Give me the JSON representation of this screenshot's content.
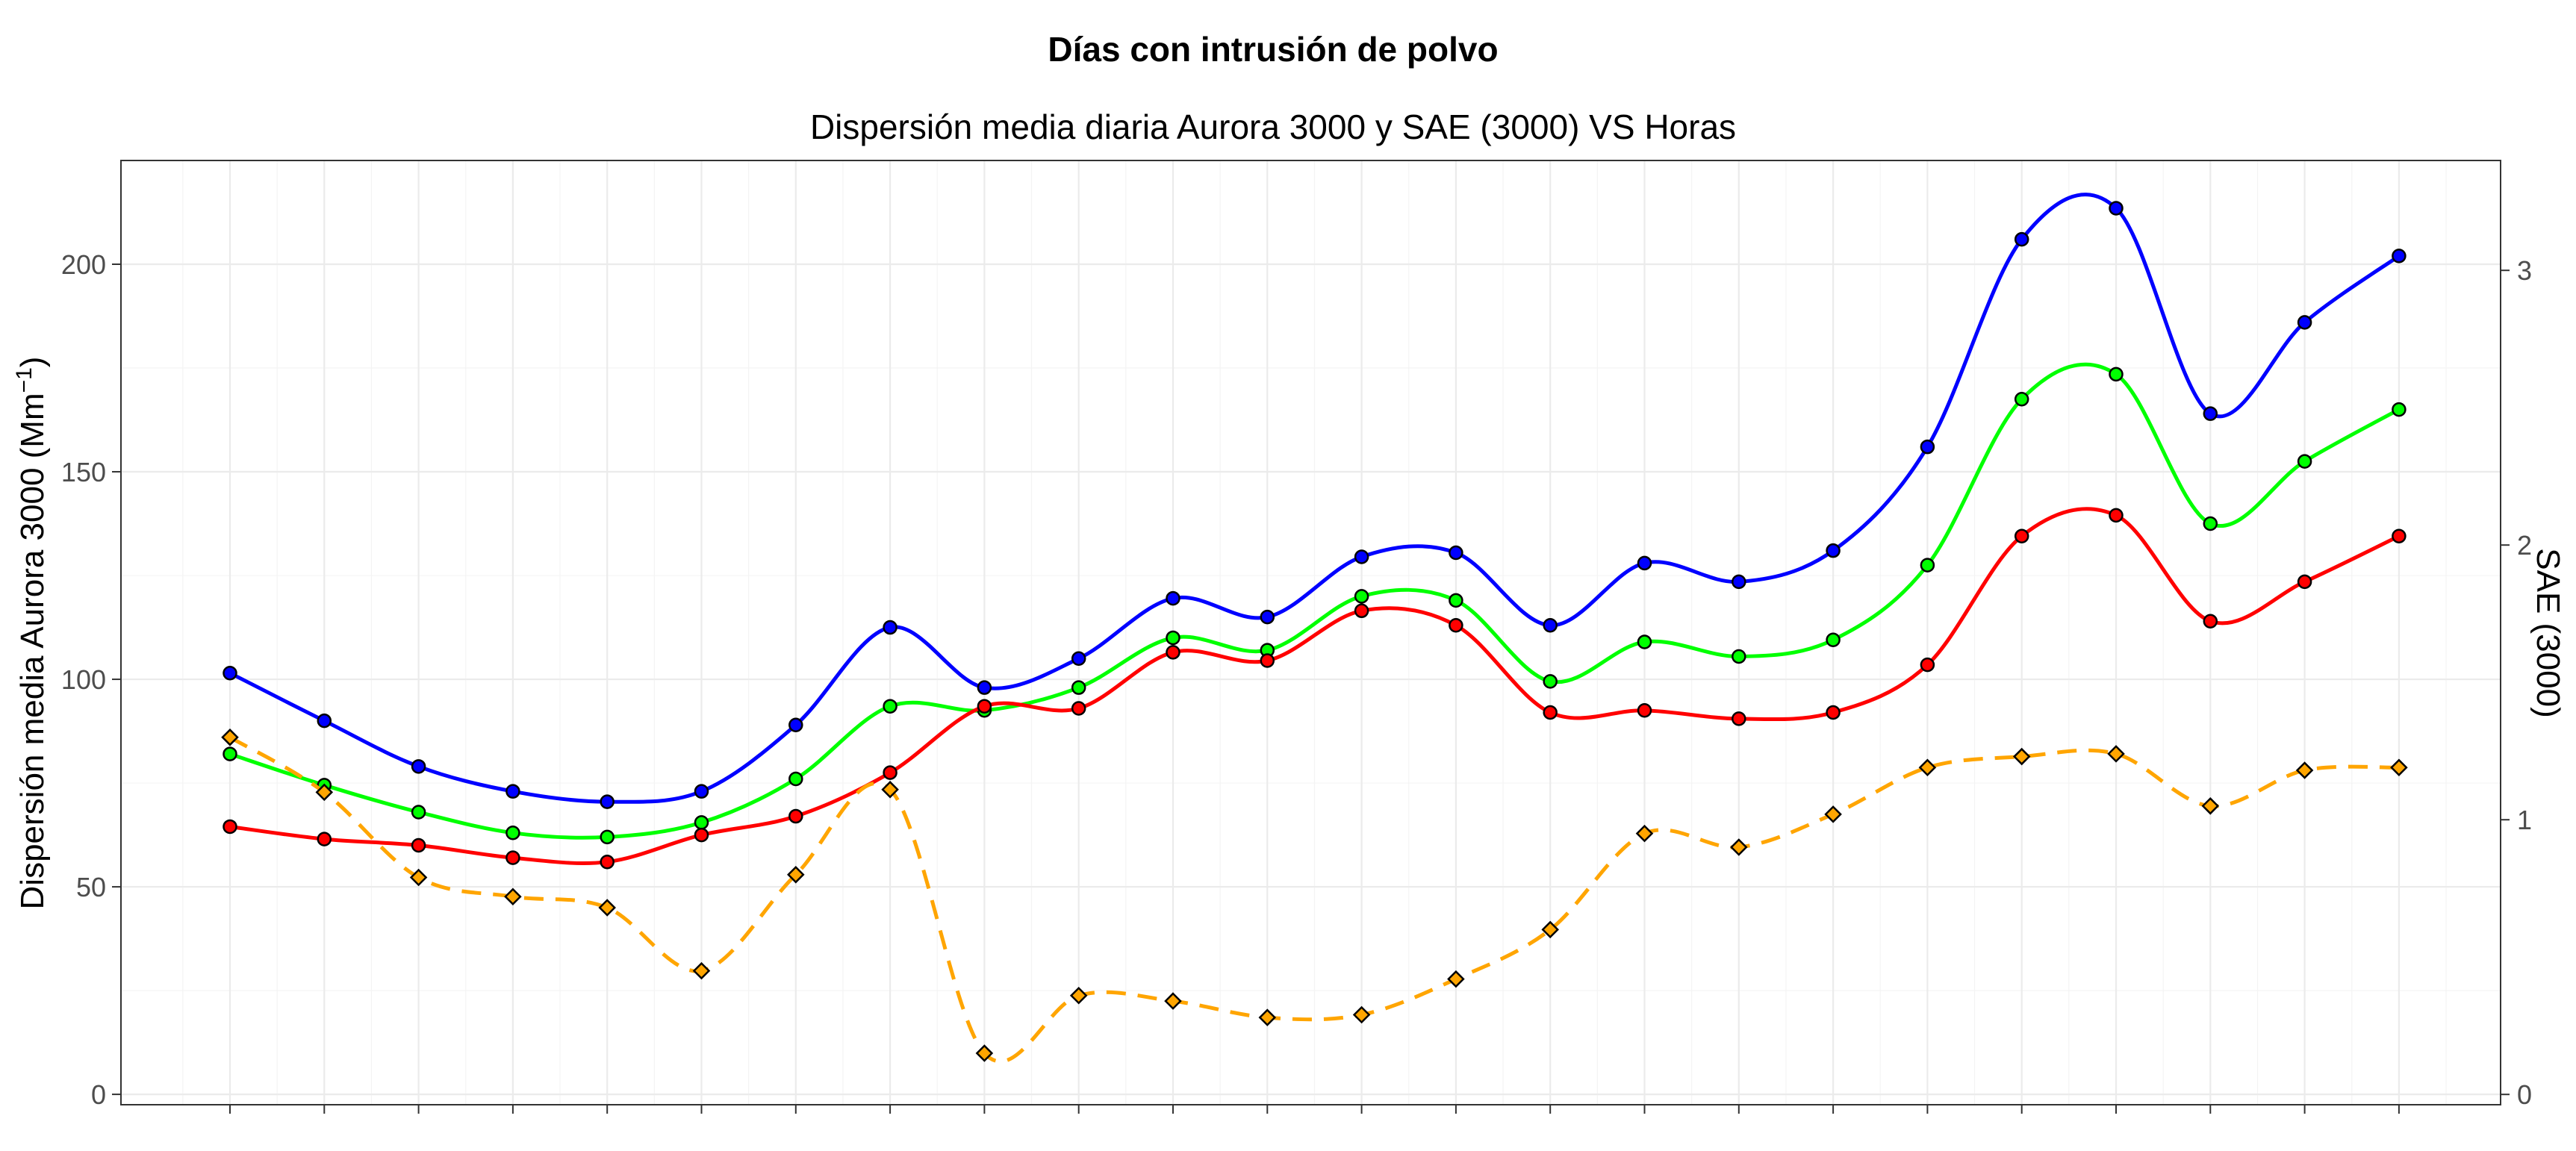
{
  "chart_data": {
    "type": "line",
    "title": "Días con intrusión de polvo",
    "subtitle": "Dispersión media diaria Aurora 3000 y SAE (3000) VS Horas",
    "ylabel_main": "Dispersión media Aurora 3000 (Mm",
    "ylabel_sup": "−1",
    "ylabel_tail": ")",
    "y2label": "SAE (3000)",
    "ylim": [
      -2.5,
      225
    ],
    "y2lim": [
      -0.0375,
      3.4
    ],
    "y_ticks": [
      0,
      50,
      100,
      150,
      200
    ],
    "y_tick_labels": [
      "0",
      "50",
      "100",
      "150",
      "200"
    ],
    "y2_ticks": [
      0,
      1,
      2,
      3
    ],
    "y2_tick_labels": [
      "0",
      "1",
      "2",
      "3"
    ],
    "grid": true,
    "x": [
      0,
      1,
      2,
      3,
      4,
      5,
      6,
      7,
      8,
      9,
      10,
      11,
      12,
      13,
      14,
      15,
      16,
      17,
      18,
      19,
      20,
      21,
      22,
      23
    ],
    "x_tick_labels": [],
    "series": [
      {
        "color": "#0000ff",
        "axis": "left",
        "marker": "circle",
        "dashed": false,
        "values": [
          101.5,
          90,
          79,
          73,
          70.5,
          73,
          89,
          112.5,
          98,
          105,
          119.5,
          115,
          129.5,
          130.5,
          113,
          128,
          123.5,
          131,
          156,
          206,
          213.5,
          164,
          186,
          202
        ]
      },
      {
        "color": "#00ff00",
        "axis": "left",
        "marker": "circle",
        "dashed": false,
        "values": [
          82,
          74.5,
          68,
          63,
          62,
          65.5,
          76,
          93.5,
          92.5,
          98,
          110,
          107,
          120,
          119,
          99.5,
          109,
          105.5,
          109.5,
          127.5,
          167.5,
          173.5,
          137.5,
          152.5,
          165
        ]
      },
      {
        "color": "#ff0000",
        "axis": "left",
        "marker": "circle",
        "dashed": false,
        "values": [
          64.5,
          61.5,
          60,
          57,
          56,
          62.5,
          67,
          77.5,
          93.5,
          93,
          106.5,
          104.5,
          116.5,
          113,
          92,
          92.5,
          90.5,
          92,
          103.5,
          134.5,
          139.5,
          114,
          123.5,
          134.5
        ]
      },
      {
        "color": "#ffa500",
        "axis": "right",
        "marker": "diamond",
        "dashed": true,
        "values": [
          1.3,
          1.1,
          0.79,
          0.72,
          0.68,
          0.45,
          0.8,
          1.11,
          0.15,
          0.36,
          0.34,
          0.28,
          0.29,
          0.42,
          0.6,
          0.95,
          0.9,
          1.02,
          1.19,
          1.23,
          1.24,
          1.05,
          1.18,
          1.19
        ]
      }
    ]
  }
}
